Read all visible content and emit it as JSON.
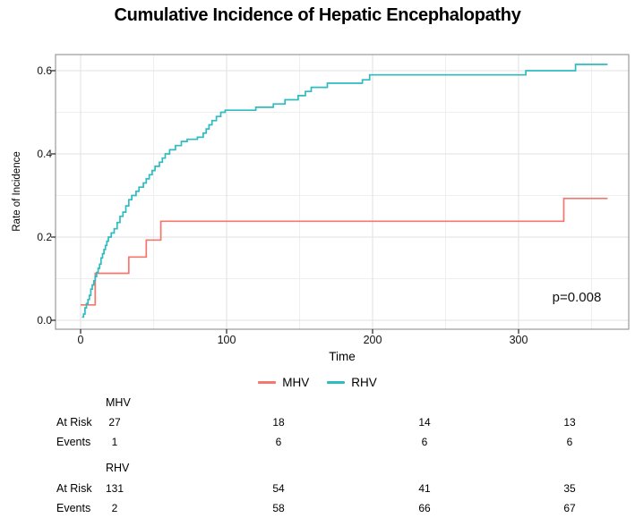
{
  "title": "Cumulative Incidence of Hepatic Encephalopathy",
  "chart_data": {
    "type": "line",
    "subtype": "step-cumulative-incidence",
    "title": "Cumulative Incidence of Hepatic Encephalopathy",
    "xlabel": "Time",
    "ylabel": "Rate of Incidence",
    "xlim": [
      -17,
      376
    ],
    "ylim": [
      -0.02,
      0.64
    ],
    "x_ticks": [
      0,
      100,
      200,
      300
    ],
    "y_ticks": [
      0.0,
      0.2,
      0.4,
      0.6
    ],
    "x_tick_labels": [
      "0",
      "100",
      "200",
      "300"
    ],
    "y_tick_labels": [
      "0.0",
      "0.2",
      "0.4",
      "0.6"
    ],
    "x_minor_ticks": [
      50,
      150,
      250,
      350
    ],
    "y_minor_ticks": [
      0.1,
      0.3,
      0.5
    ],
    "grid": "on",
    "legend_position": "bottom",
    "annotation": "p=0.008",
    "end_time": 361,
    "series": [
      {
        "name": "MHV",
        "color": "#f4766d",
        "points": [
          [
            0,
            0.037
          ],
          [
            10,
            0.113
          ],
          [
            33,
            0.152
          ],
          [
            45,
            0.193
          ],
          [
            55,
            0.238
          ],
          [
            331,
            0.293
          ]
        ]
      },
      {
        "name": "RHV",
        "color": "#2ebcc1",
        "points": [
          [
            1,
            0.008
          ],
          [
            2,
            0.015
          ],
          [
            3,
            0.03
          ],
          [
            4,
            0.04
          ],
          [
            5,
            0.05
          ],
          [
            6,
            0.06
          ],
          [
            7,
            0.075
          ],
          [
            8,
            0.085
          ],
          [
            9,
            0.095
          ],
          [
            10,
            0.105
          ],
          [
            11,
            0.115
          ],
          [
            12,
            0.125
          ],
          [
            13,
            0.135
          ],
          [
            14,
            0.15
          ],
          [
            15,
            0.16
          ],
          [
            16,
            0.17
          ],
          [
            17,
            0.18
          ],
          [
            18,
            0.19
          ],
          [
            19,
            0.2
          ],
          [
            21,
            0.21
          ],
          [
            23,
            0.22
          ],
          [
            25,
            0.235
          ],
          [
            27,
            0.25
          ],
          [
            29,
            0.26
          ],
          [
            31,
            0.275
          ],
          [
            33,
            0.29
          ],
          [
            35,
            0.3
          ],
          [
            38,
            0.31
          ],
          [
            40,
            0.32
          ],
          [
            43,
            0.33
          ],
          [
            45,
            0.34
          ],
          [
            47,
            0.35
          ],
          [
            49,
            0.36
          ],
          [
            51,
            0.37
          ],
          [
            54,
            0.38
          ],
          [
            56,
            0.39
          ],
          [
            58,
            0.4
          ],
          [
            61,
            0.41
          ],
          [
            65,
            0.42
          ],
          [
            69,
            0.43
          ],
          [
            73,
            0.435
          ],
          [
            80,
            0.44
          ],
          [
            84,
            0.45
          ],
          [
            86,
            0.46
          ],
          [
            88,
            0.47
          ],
          [
            90,
            0.48
          ],
          [
            93,
            0.49
          ],
          [
            96,
            0.5
          ],
          [
            99,
            0.505
          ],
          [
            120,
            0.512
          ],
          [
            132,
            0.52
          ],
          [
            140,
            0.53
          ],
          [
            149,
            0.54
          ],
          [
            154,
            0.55
          ],
          [
            158,
            0.56
          ],
          [
            169,
            0.57
          ],
          [
            193,
            0.578
          ],
          [
            198,
            0.59
          ],
          [
            305,
            0.6
          ],
          [
            339,
            0.615
          ]
        ]
      }
    ]
  },
  "risk_table": {
    "row_labels": [
      "At Risk",
      "Events"
    ],
    "time_columns": [
      "0",
      "100",
      "200",
      "300"
    ],
    "groups": [
      {
        "name": "MHV",
        "at_risk": [
          "27",
          "18",
          "14",
          "13"
        ],
        "events": [
          "1",
          "6",
          "6",
          "6"
        ]
      },
      {
        "name": "RHV",
        "at_risk": [
          "131",
          "54",
          "41",
          "35"
        ],
        "events": [
          "2",
          "58",
          "66",
          "67"
        ]
      }
    ]
  }
}
